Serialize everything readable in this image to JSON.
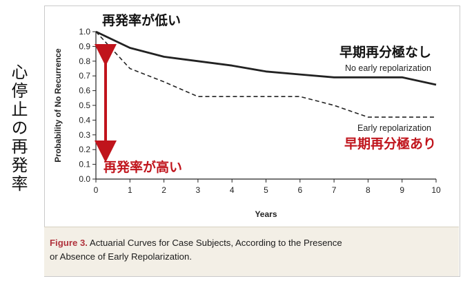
{
  "side_label": "心停止の再発率",
  "caption": {
    "figure_label": "Figure 3.",
    "line1": "Actuarial Curves for Case Subjects, According to the Presence",
    "line2": "or Absence of Early Repolarization."
  },
  "annotations": {
    "low_recurrence": "再発率が低い",
    "high_recurrence": "再発率が高い",
    "no_early_jp": "早期再分極なし",
    "early_jp": "早期再分極あり"
  },
  "colors": {
    "red": "#c0141c",
    "line": "#222222"
  },
  "chart_data": {
    "type": "line",
    "title": "",
    "xlabel": "Years",
    "ylabel": "Probability of No Recurrence",
    "xlim": [
      0,
      10
    ],
    "ylim": [
      0,
      1
    ],
    "xticks": [
      "0",
      "1",
      "2",
      "3",
      "4",
      "5",
      "6",
      "7",
      "8",
      "9",
      "10"
    ],
    "yticks": [
      "0.0",
      "0.1",
      "0.2",
      "0.3",
      "0.4",
      "0.5",
      "0.6",
      "0.7",
      "0.8",
      "0.9",
      "1.0"
    ],
    "series": [
      {
        "name": "No early repolarization",
        "style": "solid",
        "x": [
          0,
          1,
          2,
          3,
          4,
          5,
          6,
          7,
          8,
          9,
          10
        ],
        "y": [
          1.0,
          0.89,
          0.83,
          0.8,
          0.77,
          0.73,
          0.71,
          0.69,
          0.69,
          0.69,
          0.64
        ]
      },
      {
        "name": "Early repolarization",
        "style": "dashed",
        "x": [
          0,
          1,
          2,
          3,
          4,
          5,
          6,
          7,
          8,
          9,
          10
        ],
        "y": [
          1.0,
          0.75,
          0.66,
          0.56,
          0.56,
          0.56,
          0.56,
          0.5,
          0.42,
          0.42,
          0.42
        ]
      }
    ]
  }
}
